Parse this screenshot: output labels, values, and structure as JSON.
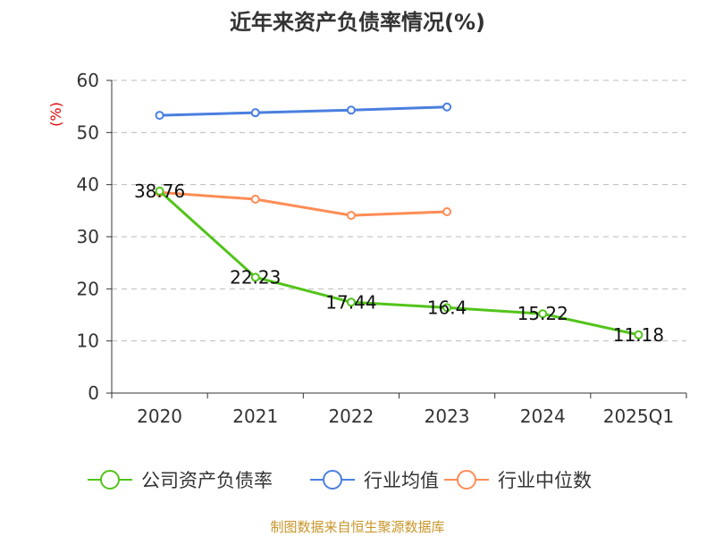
{
  "chart_data": {
    "type": "line",
    "title": "近年来资产负债率情况(%)",
    "ylabel": "(%)",
    "xlabel": "",
    "categories": [
      "2020",
      "2021",
      "2022",
      "2023",
      "2024",
      "2025Q1"
    ],
    "ylim": [
      0,
      60
    ],
    "yticks": [
      0,
      10,
      20,
      30,
      40,
      50,
      60
    ],
    "grid": true,
    "legend_position": "bottom",
    "series": [
      {
        "name": "公司资产负债率",
        "color": "#52c41a",
        "values": [
          38.76,
          22.23,
          17.44,
          16.4,
          15.22,
          11.18
        ],
        "labels": [
          "38.76",
          "22.23",
          "17.44",
          "16.4",
          "15.22",
          "11.18"
        ]
      },
      {
        "name": "行业均值",
        "color": "#4a7fe0",
        "values": [
          53.3,
          53.8,
          54.3,
          54.9,
          null,
          null
        ]
      },
      {
        "name": "行业中位数",
        "color": "#ff8c55",
        "values": [
          38.5,
          37.2,
          34.1,
          34.8,
          null,
          null
        ]
      }
    ],
    "source": "制图数据来自恒生聚源数据库"
  }
}
